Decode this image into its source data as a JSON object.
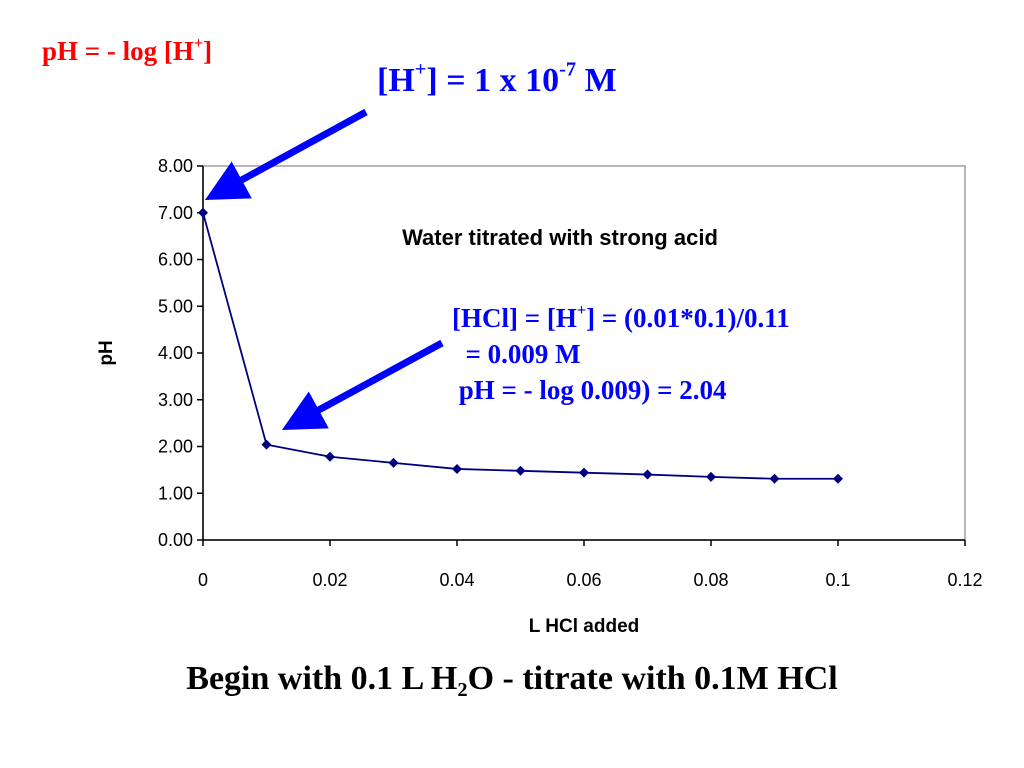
{
  "slide": {
    "formula_ph": {
      "main": "pH = - log [H",
      "sup": "+",
      "end": "]"
    },
    "formula_h": {
      "main": "[H",
      "sup1": "+",
      "mid": "] = 1 x 10",
      "sup2": "-7",
      "end": " M"
    },
    "annotation": {
      "line1": {
        "pre": "[HCl] = [H",
        "sup": "+",
        "post": "] = (0.01*0.1)/0.11"
      },
      "line2": "  = 0.009 M",
      "line3": " pH = - log 0.009) = 2.04"
    },
    "footer": {
      "pre": "Begin with 0.1 L H",
      "sub": "2",
      "post": "O - titrate with 0.1M HCl"
    },
    "colors": {
      "red": "#ff0000",
      "blue": "#0000ff",
      "series": "#00007f"
    }
  },
  "chart_data": {
    "type": "line",
    "title": "Water titrated with strong acid",
    "xlabel": "L HCl added",
    "ylabel": "pH",
    "xlim": [
      0,
      0.12
    ],
    "ylim": [
      0,
      8
    ],
    "x_ticks": [
      "0",
      "0.02",
      "0.04",
      "0.06",
      "0.08",
      "0.1",
      "0.12"
    ],
    "y_ticks": [
      "0.00",
      "1.00",
      "2.00",
      "3.00",
      "4.00",
      "5.00",
      "6.00",
      "7.00",
      "8.00"
    ],
    "x": [
      0,
      0.01,
      0.02,
      0.03,
      0.04,
      0.05,
      0.06,
      0.07,
      0.08,
      0.09,
      0.1
    ],
    "y": [
      7.0,
      2.04,
      1.78,
      1.65,
      1.52,
      1.48,
      1.44,
      1.4,
      1.35,
      1.31,
      1.31
    ],
    "marker": "diamond",
    "grid": false,
    "legend": false
  }
}
